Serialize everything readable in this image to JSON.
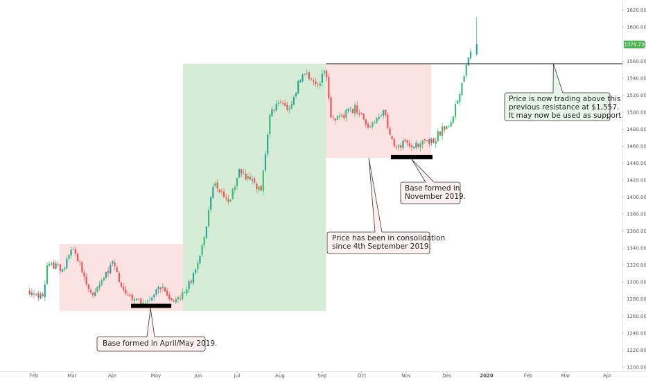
{
  "chart_data": {
    "type": "candlestick",
    "currency_axis": "price",
    "ylim": [
      1195,
      1632
    ],
    "x_months": [
      "Feb",
      "Mar",
      "Apr",
      "May",
      "Jun",
      "Jul",
      "Aug",
      "Sep",
      "Oct",
      "Nov",
      "Dec",
      "2020",
      "Feb",
      "Mar",
      "Apr"
    ],
    "y_ticks": [
      1200,
      1220,
      1240,
      1260,
      1280,
      1300,
      1320,
      1340,
      1360,
      1380,
      1400,
      1420,
      1440,
      1460,
      1480,
      1500,
      1520,
      1540,
      1560,
      1580,
      1600,
      1620
    ],
    "last_price": "1579.73",
    "last_price_value": 1579.73,
    "resistance": {
      "level": 1557
    },
    "colors": {
      "up": "#26a69a",
      "up_alt": "#3dbb72",
      "down": "#ef5350",
      "base_marker": "#000000",
      "zone_red": "#fbe3e3",
      "zone_green": "#d6ecd6",
      "callout_red_bg": "#fdf0f0",
      "callout_green_bg": "#e8f5e9",
      "price_label": "#4caf50"
    },
    "zones": [
      {
        "kind": "consolidation",
        "x_from": -9.5,
        "x_to": 0,
        "y_from": 1266,
        "y_to": 1345,
        "color": "zone_red"
      },
      {
        "kind": "rally",
        "x_from": 0,
        "x_to": 11,
        "y_from": 1266,
        "y_to": 1557,
        "color": "zone_green"
      },
      {
        "kind": "consolidation",
        "x_from": 11,
        "x_to": 19.1,
        "y_from": 1446,
        "y_to": 1557,
        "color": "zone_red"
      }
    ],
    "base_markers": [
      {
        "x_from": -4,
        "x_to": -0.9,
        "y": 1272
      },
      {
        "x_from": 16,
        "x_to": 19.2,
        "y": 1447
      }
    ],
    "anchors": [
      {
        "month": "Feb",
        "x_offset": -11.8,
        "y": 1290
      },
      {
        "month": "Feb",
        "x_offset": -10.8,
        "y": 1283
      },
      {
        "month": "Feb",
        "x_offset": -10.4,
        "y": 1325
      },
      {
        "month": "Feb",
        "x_offset": -9.3,
        "y": 1312
      },
      {
        "month": "Mar",
        "x_offset": -8.4,
        "y": 1340
      },
      {
        "month": "Mar",
        "x_offset": -7.0,
        "y": 1285
      },
      {
        "month": "Apr",
        "x_offset": -5.4,
        "y": 1322
      },
      {
        "month": "Apr",
        "x_offset": -4.7,
        "y": 1290
      },
      {
        "month": "May",
        "x_offset": -3.0,
        "y": 1272
      },
      {
        "month": "May",
        "x_offset": -1.6,
        "y": 1295
      },
      {
        "month": "May",
        "x_offset": -0.8,
        "y": 1274
      },
      {
        "month": "Jun",
        "x_offset": 0.6,
        "y": 1300
      },
      {
        "month": "Jun",
        "x_offset": 1.6,
        "y": 1345
      },
      {
        "month": "Jul",
        "x_offset": 2.3,
        "y": 1415
      },
      {
        "month": "Jul",
        "x_offset": 3.6,
        "y": 1395
      },
      {
        "month": "Jul",
        "x_offset": 4.3,
        "y": 1430
      },
      {
        "month": "Aug",
        "x_offset": 6.0,
        "y": 1408
      },
      {
        "month": "Aug",
        "x_offset": 6.7,
        "y": 1500
      },
      {
        "month": "Aug",
        "x_offset": 7.5,
        "y": 1510
      },
      {
        "month": "Aug",
        "x_offset": 8.2,
        "y": 1505
      },
      {
        "month": "Sep",
        "x_offset": 9.2,
        "y": 1548
      },
      {
        "month": "Sep",
        "x_offset": 10.3,
        "y": 1530
      },
      {
        "month": "Sep",
        "x_offset": 11.0,
        "y": 1553
      },
      {
        "month": "Sep",
        "x_offset": 11.4,
        "y": 1488
      },
      {
        "month": "Oct",
        "x_offset": 13.3,
        "y": 1505
      },
      {
        "month": "Oct",
        "x_offset": 14.3,
        "y": 1485
      },
      {
        "month": "Oct",
        "x_offset": 15.5,
        "y": 1500
      },
      {
        "month": "Nov",
        "x_offset": 16.2,
        "y": 1460
      },
      {
        "month": "Nov",
        "x_offset": 17.0,
        "y": 1463
      },
      {
        "month": "Nov",
        "x_offset": 18.0,
        "y": 1460
      },
      {
        "month": "Dec",
        "x_offset": 19.3,
        "y": 1468
      },
      {
        "month": "Dec",
        "x_offset": 20.6,
        "y": 1490
      },
      {
        "month": "Dec",
        "x_offset": 21.2,
        "y": 1518
      },
      {
        "month": "2020",
        "x_offset": 21.9,
        "y": 1565
      },
      {
        "month": "2020",
        "x_offset": 22.2,
        "y": 1578
      }
    ]
  },
  "annotations": {
    "base_april": {
      "lines": [
        "Base formed in April/May 2019."
      ]
    },
    "consolidation": {
      "lines": [
        "Price has been in consolidation",
        "since 4th September 2019."
      ]
    },
    "base_november": {
      "lines": [
        "Base formed in",
        "November 2019."
      ]
    },
    "resistance_note": {
      "lines": [
        "Price is now trading above this",
        "previous resistance at $1,557.",
        "It may now be used as support."
      ]
    }
  }
}
